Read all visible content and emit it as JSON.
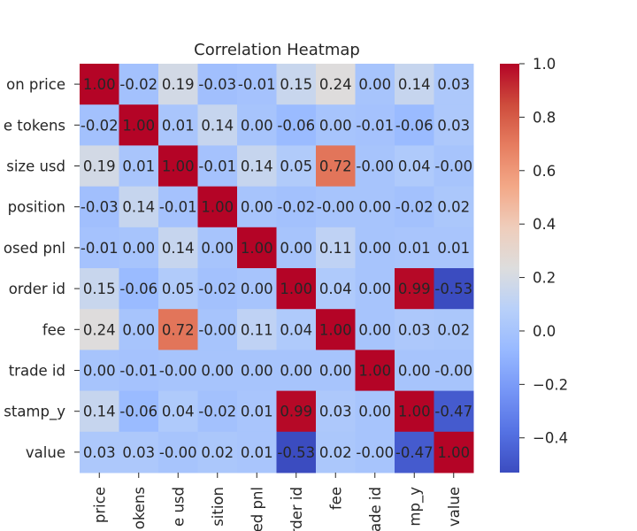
{
  "chart_data": {
    "type": "heatmap",
    "title": "Correlation Heatmap",
    "row_labels": [
      "on price",
      "e tokens",
      "size usd",
      "position",
      "osed pnl",
      "order id",
      "fee",
      "trade id",
      "stamp_y",
      "value"
    ],
    "col_labels": [
      "price",
      "okens",
      "e usd",
      "sition",
      "ed pnl",
      "rder id",
      "fee",
      "ade id",
      "mp_y",
      "value"
    ],
    "values": [
      [
        1.0,
        -0.02,
        0.19,
        -0.03,
        -0.01,
        0.15,
        0.24,
        0.0,
        0.14,
        0.03
      ],
      [
        -0.02,
        1.0,
        0.01,
        0.14,
        0.0,
        -0.06,
        0.0,
        -0.01,
        -0.06,
        0.03
      ],
      [
        0.19,
        0.01,
        1.0,
        -0.01,
        0.14,
        0.05,
        0.72,
        -0.0,
        0.04,
        -0.0
      ],
      [
        -0.03,
        0.14,
        -0.01,
        1.0,
        0.0,
        -0.02,
        -0.0,
        0.0,
        -0.02,
        0.02
      ],
      [
        -0.01,
        0.0,
        0.14,
        0.0,
        1.0,
        0.0,
        0.11,
        0.0,
        0.01,
        0.01
      ],
      [
        0.15,
        -0.06,
        0.05,
        -0.02,
        0.0,
        1.0,
        0.04,
        0.0,
        0.99,
        -0.53
      ],
      [
        0.24,
        0.0,
        0.72,
        -0.0,
        0.11,
        0.04,
        1.0,
        0.0,
        0.03,
        0.02
      ],
      [
        0.0,
        -0.01,
        -0.0,
        0.0,
        0.0,
        0.0,
        0.0,
        1.0,
        0.0,
        -0.0
      ],
      [
        0.14,
        -0.06,
        0.04,
        -0.02,
        0.01,
        0.99,
        0.03,
        0.0,
        1.0,
        -0.47
      ],
      [
        0.03,
        0.03,
        -0.0,
        0.02,
        0.01,
        -0.53,
        0.02,
        -0.0,
        -0.47,
        1.0
      ]
    ],
    "value_format": "0.00",
    "colormap": "coolwarm",
    "vmin": -0.53,
    "vmax": 1.0,
    "colorbar_ticks": [
      1.0,
      0.8,
      0.6,
      0.4,
      0.2,
      0.0,
      -0.2,
      -0.4
    ],
    "colorbar_tick_labels": [
      "1.0",
      "0.8",
      "0.6",
      "0.4",
      "0.2",
      "0.0",
      "−0.2",
      "−0.4"
    ],
    "grid": false,
    "legend": "colorbar-right"
  }
}
